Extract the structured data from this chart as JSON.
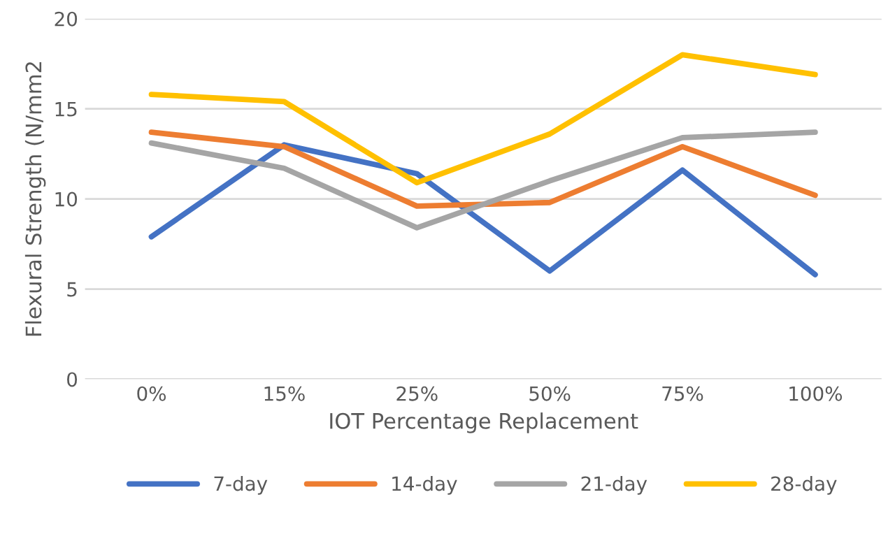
{
  "chart_data": {
    "type": "line",
    "xlabel": "IOT Percentage Replacement",
    "ylabel": "Flexural Strength (N/mm2",
    "categories": [
      "0%",
      "15%",
      "25%",
      "50%",
      "75%",
      "100%"
    ],
    "series": [
      {
        "name": "7-day",
        "color": "#4472c4",
        "values": [
          7.9,
          13.0,
          11.4,
          6.0,
          11.6,
          5.8
        ]
      },
      {
        "name": "14-day",
        "color": "#ed7d31",
        "values": [
          13.7,
          12.9,
          9.6,
          9.8,
          12.9,
          10.2
        ]
      },
      {
        "name": "21-day",
        "color": "#a5a5a5",
        "values": [
          13.1,
          11.7,
          8.4,
          11.0,
          13.4,
          13.7
        ]
      },
      {
        "name": "28-day",
        "color": "#ffc000",
        "values": [
          15.8,
          15.4,
          10.9,
          13.6,
          18.0,
          16.9
        ]
      }
    ],
    "ylim": [
      0,
      20
    ],
    "yticks": [
      0,
      5,
      10,
      15,
      20
    ],
    "grid": "y",
    "legend": "bottom"
  }
}
